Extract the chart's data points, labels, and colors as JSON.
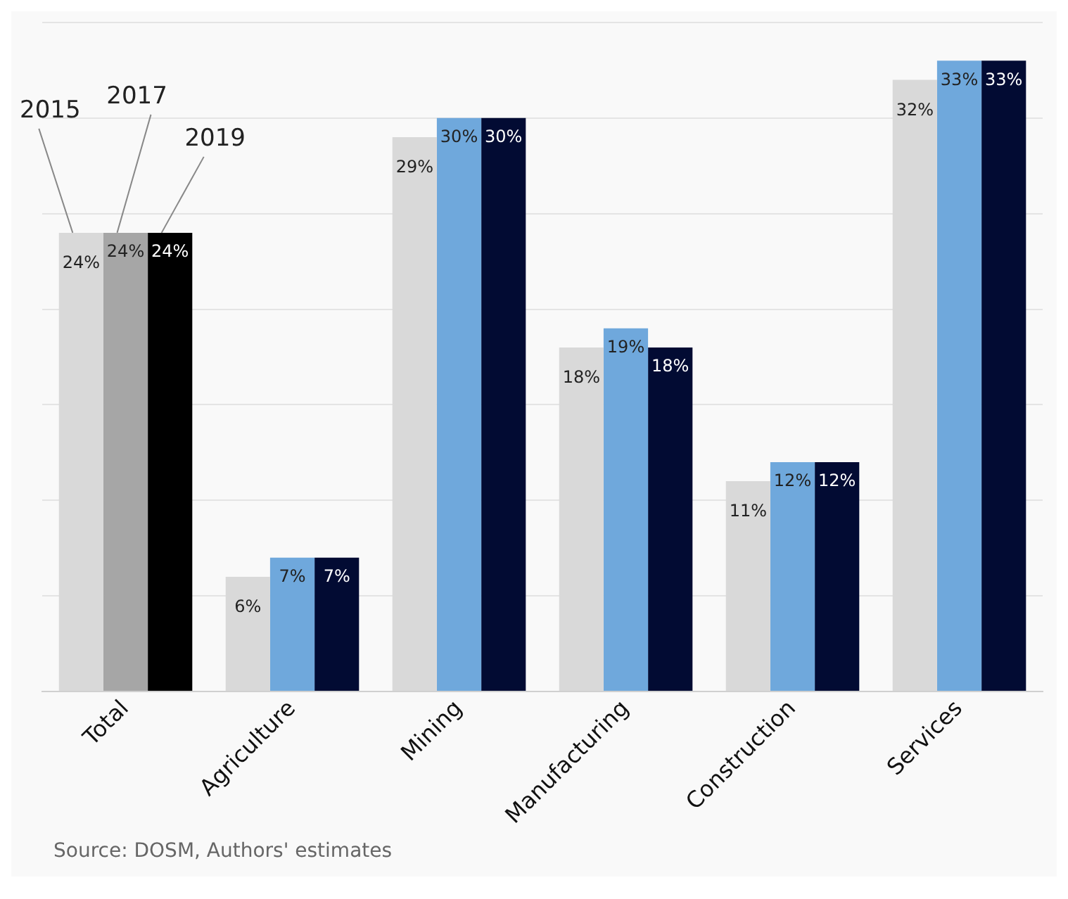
{
  "chart_data": {
    "type": "bar",
    "categories": [
      "Total",
      "Agriculture",
      "Mining",
      "Manufacturing",
      "Construction",
      "Services"
    ],
    "series": [
      {
        "name": "2015",
        "colors": [
          "#d9d9d9",
          "#d9d9d9",
          "#d9d9d9",
          "#d9d9d9",
          "#d9d9d9",
          "#d9d9d9"
        ],
        "values": [
          24,
          6,
          29,
          18,
          11,
          32
        ],
        "value_labels": [
          "24%",
          "6%",
          "29%",
          "18%",
          "11%",
          "32%"
        ]
      },
      {
        "name": "2017",
        "colors": [
          "#a6a6a6",
          "#6fa8dc",
          "#6fa8dc",
          "#6fa8dc",
          "#6fa8dc",
          "#6fa8dc"
        ],
        "values": [
          24,
          7,
          30,
          19,
          12,
          33
        ],
        "value_labels": [
          "24%",
          "7%",
          "30%",
          "19%",
          "12%",
          "33%"
        ]
      },
      {
        "name": "2019",
        "colors": [
          "#000000",
          "#020b33",
          "#020b33",
          "#020b33",
          "#020b33",
          "#020b33"
        ],
        "values": [
          24,
          7,
          30,
          18,
          12,
          33
        ],
        "value_labels": [
          "24%",
          "7%",
          "30%",
          "18%",
          "12%",
          "33%"
        ]
      }
    ],
    "ylim": [
      0,
      35
    ],
    "yticks": [
      {
        "value": 0,
        "label": null
      },
      {
        "value": 5,
        "label": null
      },
      {
        "value": 10,
        "label": null
      },
      {
        "value": 15,
        "label": null
      },
      {
        "value": 20,
        "label": null
      },
      {
        "value": 25,
        "label": null
      },
      {
        "value": 30,
        "label": null
      },
      {
        "value": 35,
        "label": null
      }
    ],
    "grid": "y",
    "legend": false,
    "tick_labels": "x",
    "annotations": [
      "Source: DOSM, Authors' estimates"
    ]
  }
}
